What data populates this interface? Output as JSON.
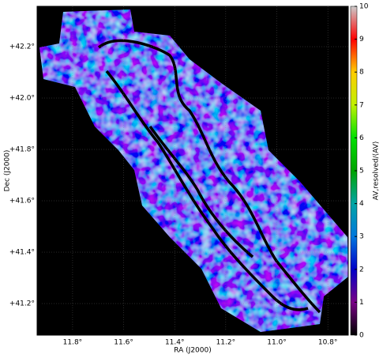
{
  "chart_data": {
    "type": "image",
    "x_label": "RA (J2000)",
    "y_label": "Dec (J2000)",
    "colorbar_label": "AV,resolved/⟨AV⟩",
    "xlim": [
      11.939,
      10.72
    ],
    "xticks": [
      {
        "value": 11.8,
        "label": "11.8°"
      },
      {
        "value": 11.6,
        "label": "11.6°"
      },
      {
        "value": 11.4,
        "label": "11.4°"
      },
      {
        "value": 11.2,
        "label": "11.2°"
      },
      {
        "value": 11.0,
        "label": "11.0°"
      },
      {
        "value": 10.8,
        "label": "10.8°"
      }
    ],
    "ylim": [
      41.077,
      42.357
    ],
    "yticks": [
      {
        "value": 41.2,
        "label": "+41.2°"
      },
      {
        "value": 41.4,
        "label": "+41.4°"
      },
      {
        "value": 41.6,
        "label": "+41.6°"
      },
      {
        "value": 41.8,
        "label": "+41.8°"
      },
      {
        "value": 42.0,
        "label": "+42.0°"
      },
      {
        "value": 42.2,
        "label": "+42.2°"
      }
    ],
    "clim": [
      0,
      10
    ],
    "cticks": [
      0,
      1,
      2,
      3,
      4,
      5,
      6,
      7,
      8,
      9,
      10
    ],
    "colormap": [
      "#000000",
      "#7a0087",
      "#0000c8",
      "#0077dd",
      "#00a5a5",
      "#00a300",
      "#00e000",
      "#c0f000",
      "#ffcc00",
      "#ff0000",
      "#cccccc"
    ],
    "grid": true
  }
}
